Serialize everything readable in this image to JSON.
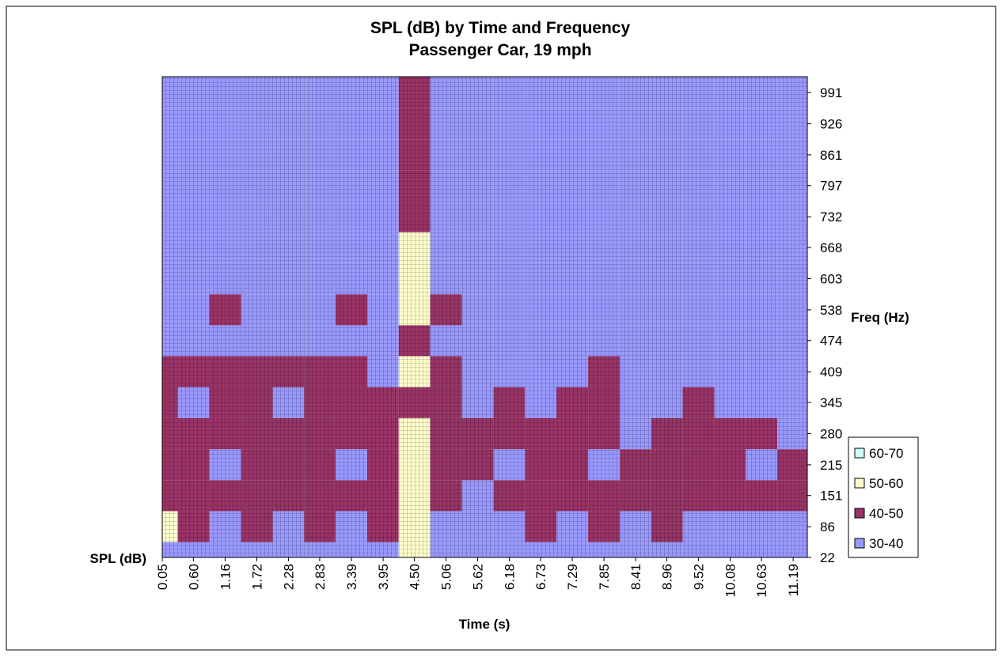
{
  "chart_data": {
    "type": "contour",
    "title": "SPL (dB) by Time and Frequency",
    "subtitle": "Passenger Car, 19 mph",
    "x_label": "Time (s)",
    "y_label": "Freq (Hz)",
    "z_label": "SPL (dB)",
    "x": [
      0.05,
      0.6,
      1.16,
      1.72,
      2.28,
      2.83,
      3.39,
      3.95,
      4.5,
      5.06,
      5.62,
      6.18,
      6.73,
      7.29,
      7.85,
      8.41,
      8.96,
      9.52,
      10.08,
      10.63,
      11.19
    ],
    "xticks": [
      {
        "value": 0.05,
        "label": "0.05"
      },
      {
        "value": 0.6,
        "label": "0.60"
      },
      1.16,
      1.72,
      2.28,
      2.83,
      3.39,
      3.95,
      {
        "value": 4.5,
        "label": "4.50"
      },
      5.06,
      5.62,
      6.18,
      6.73,
      7.29,
      7.85,
      8.41,
      8.96,
      9.52,
      10.08,
      10.63,
      11.19
    ],
    "xlim": [
      0.05,
      11.44
    ],
    "y": [
      22,
      86,
      151,
      215,
      280,
      345,
      409,
      474,
      538,
      603,
      668,
      732,
      797,
      861,
      926,
      991
    ],
    "yticks": [
      22,
      86,
      151,
      215,
      280,
      345,
      409,
      474,
      538,
      603,
      668,
      732,
      797,
      861,
      926,
      991
    ],
    "ylim": [
      22,
      1024
    ],
    "levels": [
      {
        "name": "60-70",
        "color": "#ccffff",
        "min": 60,
        "max": 70
      },
      {
        "name": "50-60",
        "color": "#ffffcc",
        "min": 50,
        "max": 60
      },
      {
        "name": "40-50",
        "color": "#993366",
        "min": 40,
        "max": 50
      },
      {
        "name": "30-40",
        "color": "#9999ff",
        "min": 30,
        "max": 40
      }
    ],
    "z": [
      [
        35,
        35,
        35,
        35,
        35,
        35,
        35,
        35,
        55,
        35,
        35,
        35,
        35,
        35,
        35,
        35,
        35,
        35,
        35,
        35,
        35
      ],
      [
        55,
        45,
        35,
        45,
        35,
        45,
        35,
        45,
        55,
        35,
        35,
        35,
        45,
        35,
        45,
        35,
        45,
        35,
        35,
        35,
        35
      ],
      [
        45,
        45,
        45,
        45,
        45,
        45,
        45,
        45,
        55,
        45,
        35,
        45,
        45,
        45,
        45,
        45,
        45,
        45,
        45,
        45,
        45
      ],
      [
        45,
        45,
        35,
        45,
        45,
        45,
        35,
        45,
        55,
        45,
        45,
        35,
        45,
        45,
        35,
        45,
        45,
        45,
        45,
        35,
        45
      ],
      [
        45,
        45,
        45,
        45,
        45,
        45,
        45,
        45,
        55,
        45,
        45,
        45,
        45,
        45,
        45,
        35,
        45,
        45,
        45,
        45,
        35
      ],
      [
        45,
        35,
        45,
        45,
        35,
        45,
        45,
        45,
        45,
        45,
        35,
        45,
        35,
        45,
        45,
        35,
        35,
        45,
        35,
        35,
        35
      ],
      [
        45,
        45,
        45,
        45,
        45,
        45,
        45,
        35,
        55,
        45,
        35,
        35,
        35,
        35,
        45,
        35,
        35,
        35,
        35,
        35,
        35
      ],
      [
        35,
        35,
        35,
        35,
        35,
        35,
        35,
        35,
        45,
        35,
        35,
        35,
        35,
        35,
        35,
        35,
        35,
        35,
        35,
        35,
        35
      ],
      [
        35,
        35,
        45,
        35,
        35,
        35,
        45,
        35,
        55,
        45,
        35,
        35,
        35,
        35,
        35,
        35,
        35,
        35,
        35,
        35,
        35
      ],
      [
        35,
        35,
        35,
        35,
        35,
        35,
        35,
        35,
        55,
        35,
        35,
        35,
        35,
        35,
        35,
        35,
        35,
        35,
        35,
        35,
        35
      ],
      [
        35,
        35,
        35,
        35,
        35,
        35,
        35,
        35,
        55,
        35,
        35,
        35,
        35,
        35,
        35,
        35,
        35,
        35,
        35,
        35,
        35
      ],
      [
        35,
        35,
        35,
        35,
        35,
        35,
        35,
        35,
        45,
        35,
        35,
        35,
        35,
        35,
        35,
        35,
        35,
        35,
        35,
        35,
        35
      ],
      [
        35,
        35,
        35,
        35,
        35,
        35,
        35,
        35,
        45,
        35,
        35,
        35,
        35,
        35,
        35,
        35,
        35,
        35,
        35,
        35,
        35
      ],
      [
        35,
        35,
        35,
        35,
        35,
        35,
        35,
        35,
        45,
        35,
        35,
        35,
        35,
        35,
        35,
        35,
        35,
        35,
        35,
        35,
        35
      ],
      [
        35,
        35,
        35,
        35,
        35,
        35,
        35,
        35,
        45,
        35,
        35,
        35,
        35,
        35,
        35,
        35,
        35,
        35,
        35,
        35,
        35
      ],
      [
        35,
        35,
        35,
        35,
        35,
        35,
        35,
        35,
        45,
        35,
        35,
        35,
        35,
        35,
        35,
        35,
        35,
        35,
        35,
        35,
        35
      ]
    ]
  }
}
